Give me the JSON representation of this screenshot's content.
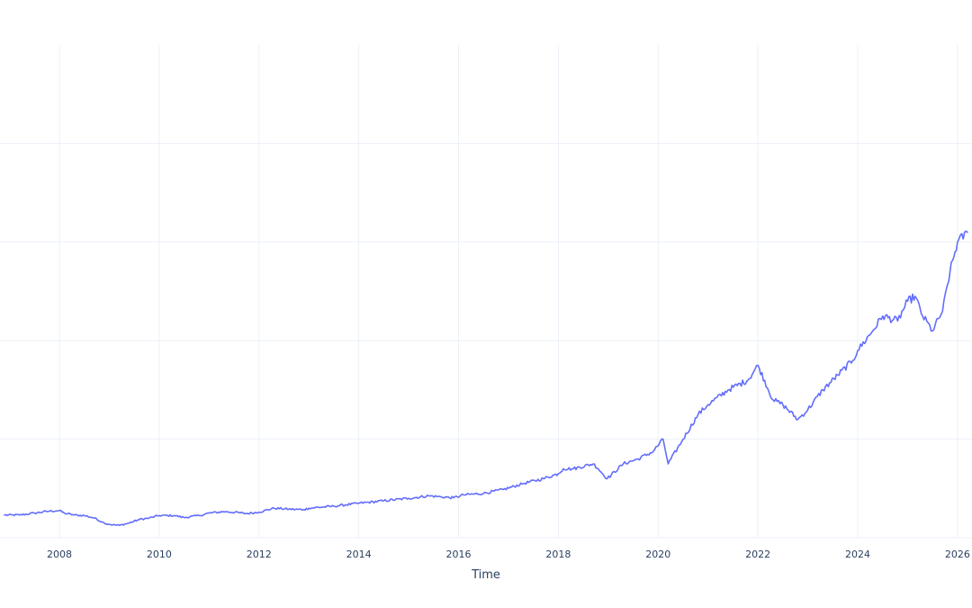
{
  "chart_data": {
    "type": "line",
    "title": "",
    "xlabel": "Time",
    "ylabel": "",
    "x_tick_labels": [
      "2008",
      "2010",
      "2012",
      "2014",
      "2016",
      "2018",
      "2020",
      "2022",
      "2024",
      "2026"
    ],
    "x_range": [
      2006.9,
      2026.2
    ],
    "y_range": [
      0,
      1.0
    ],
    "y_gridlines": [
      0.2,
      0.4,
      0.6,
      0.8
    ],
    "grid": true,
    "legend": "none",
    "colors": {
      "line": "#636efa",
      "grid": "#ebf0f8",
      "text": "#2a3f5f"
    },
    "series": [
      {
        "x": [
          2006.9,
          2007.2,
          2007.5,
          2007.8,
          2008.0,
          2008.1,
          2008.3,
          2008.5,
          2008.7,
          2008.9,
          2009.0,
          2009.2,
          2009.4,
          2009.6,
          2009.8,
          2010.0,
          2010.3,
          2010.5,
          2010.8,
          2011.0,
          2011.3,
          2011.6,
          2011.75,
          2012.0,
          2012.3,
          2012.6,
          2012.9,
          2013.0,
          2013.5,
          2014.0,
          2014.5,
          2015.0,
          2015.4,
          2015.65,
          2015.9,
          2016.1,
          2016.5,
          2016.9,
          2017.3,
          2017.7,
          2018.0,
          2018.1,
          2018.3,
          2018.7,
          2018.8,
          2018.98,
          2019.3,
          2019.6,
          2019.9,
          2020.1,
          2020.2,
          2020.5,
          2020.8,
          2021.0,
          2021.4,
          2021.8,
          2022.0,
          2022.3,
          2022.5,
          2022.8,
          2023.0,
          2023.3,
          2023.6,
          2023.9,
          2024.0,
          2024.3,
          2024.5,
          2024.8,
          2025.0,
          2025.15,
          2025.3,
          2025.5,
          2025.7,
          2025.85,
          2026.0,
          2026.2
        ],
        "y": [
          0.046,
          0.046,
          0.05,
          0.054,
          0.055,
          0.05,
          0.046,
          0.045,
          0.04,
          0.03,
          0.027,
          0.025,
          0.03,
          0.037,
          0.04,
          0.045,
          0.045,
          0.041,
          0.045,
          0.05,
          0.053,
          0.051,
          0.049,
          0.052,
          0.06,
          0.058,
          0.057,
          0.06,
          0.064,
          0.07,
          0.075,
          0.08,
          0.085,
          0.083,
          0.081,
          0.087,
          0.09,
          0.098,
          0.11,
          0.12,
          0.13,
          0.14,
          0.14,
          0.15,
          0.14,
          0.12,
          0.15,
          0.16,
          0.175,
          0.2,
          0.15,
          0.2,
          0.25,
          0.27,
          0.3,
          0.32,
          0.35,
          0.28,
          0.27,
          0.24,
          0.26,
          0.3,
          0.33,
          0.36,
          0.38,
          0.42,
          0.45,
          0.44,
          0.48,
          0.49,
          0.45,
          0.42,
          0.46,
          0.54,
          0.6,
          0.62
        ]
      }
    ]
  }
}
